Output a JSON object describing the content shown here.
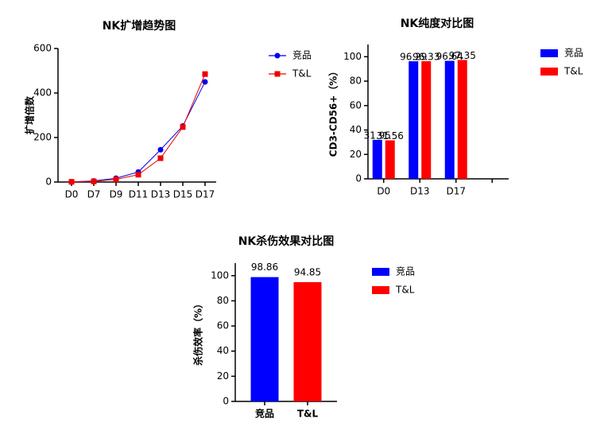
{
  "chart_data": [
    {
      "type": "line",
      "title": "NK扩增趋势图",
      "y_label": "扩增倍数",
      "categories": [
        "D0",
        "D7",
        "D9",
        "D11",
        "D13",
        "D15",
        "D17"
      ],
      "series": [
        {
          "name": "竞品",
          "color": "#0000ee",
          "marker": "circle",
          "values": [
            1,
            5,
            17,
            45,
            145,
            252,
            450
          ]
        },
        {
          "name": "T&L",
          "color": "#ee0000",
          "marker": "square",
          "values": [
            1,
            3,
            12,
            33,
            107,
            247,
            485
          ]
        }
      ],
      "ylim": [
        0,
        600
      ],
      "yticks": [
        0,
        200,
        400,
        600
      ],
      "legend": "right"
    },
    {
      "type": "bar",
      "title": "NK纯度对比图",
      "y_label": "CD3-CD56+（%）",
      "categories": [
        "D0",
        "D13",
        "D17",
        null
      ],
      "series": [
        {
          "name": "竞品",
          "color": "#0000ff",
          "values": [
            31.95,
            96.29,
            96.64,
            null
          ]
        },
        {
          "name": "T&L",
          "color": "#ff0000",
          "values": [
            31.56,
            96.33,
            97.35,
            null
          ]
        }
      ],
      "ylim": [
        0,
        110
      ],
      "yticks": [
        0,
        20,
        40,
        60,
        80,
        100
      ],
      "legend": "right"
    },
    {
      "type": "bar",
      "title": "NK杀伤效果对比图",
      "y_label": "杀伤效率（%）",
      "categories": [
        "竞品",
        "T&L"
      ],
      "values": [
        98.86,
        94.85
      ],
      "colors": [
        "#0000ff",
        "#ff0000"
      ],
      "ylim": [
        0,
        110
      ],
      "yticks": [
        0,
        20,
        40,
        60,
        80,
        100
      ],
      "legend": "right"
    }
  ]
}
